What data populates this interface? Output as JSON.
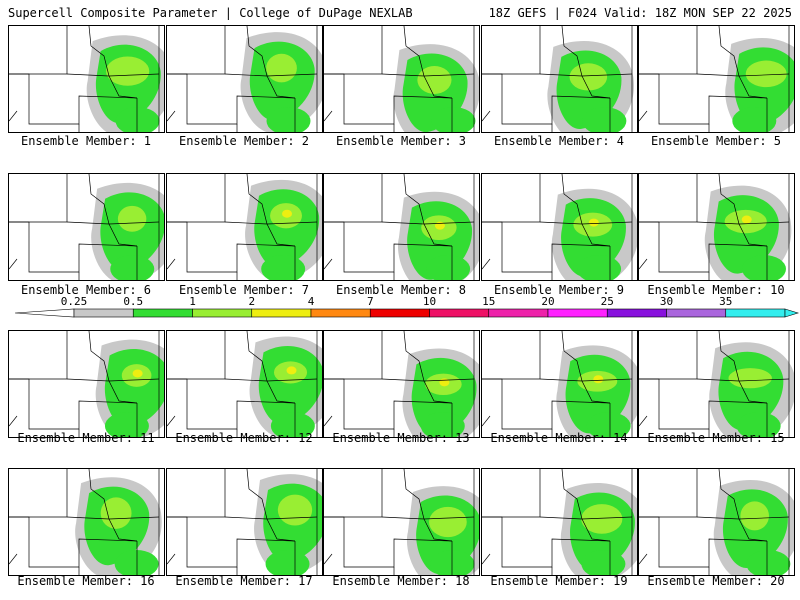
{
  "header": {
    "left_title": "Supercell Composite Parameter | College of DuPage NEXLAB",
    "right_title": "18Z GEFS | F024 Valid: 18Z MON SEP 22 2025"
  },
  "members": [
    {
      "label": "Ensemble Member: 1"
    },
    {
      "label": "Ensemble Member: 2"
    },
    {
      "label": "Ensemble Member: 3"
    },
    {
      "label": "Ensemble Member: 4"
    },
    {
      "label": "Ensemble Member: 5"
    },
    {
      "label": "Ensemble Member: 6"
    },
    {
      "label": "Ensemble Member: 7"
    },
    {
      "label": "Ensemble Member: 8"
    },
    {
      "label": "Ensemble Member: 9"
    },
    {
      "label": "Ensemble Member: 10"
    },
    {
      "label": "Ensemble Member: 11"
    },
    {
      "label": "Ensemble Member: 12"
    },
    {
      "label": "Ensemble Member: 13"
    },
    {
      "label": "Ensemble Member: 14"
    },
    {
      "label": "Ensemble Member: 15"
    },
    {
      "label": "Ensemble Member: 16"
    },
    {
      "label": "Ensemble Member: 17"
    },
    {
      "label": "Ensemble Member: 18"
    },
    {
      "label": "Ensemble Member: 19"
    },
    {
      "label": "Ensemble Member: 20"
    }
  ],
  "colorbar": {
    "labels": [
      "0.25",
      "0.5",
      "1",
      "2",
      "4",
      "7",
      "10",
      "15",
      "20",
      "25",
      "30",
      "35"
    ],
    "colors": [
      "#c8c8c8",
      "#33dd33",
      "#99ee33",
      "#eeee11",
      "#ff8811",
      "#ee0000",
      "#ee1166",
      "#ee22aa",
      "#ff22ff",
      "#8811dd",
      "#aa66dd",
      "#33eeee"
    ]
  },
  "palette": {
    "gray": "#c8c8c8",
    "green": "#33dd33",
    "lightgreen": "#99ee33",
    "yellow": "#eeee11",
    "map_lines": "#000000"
  }
}
